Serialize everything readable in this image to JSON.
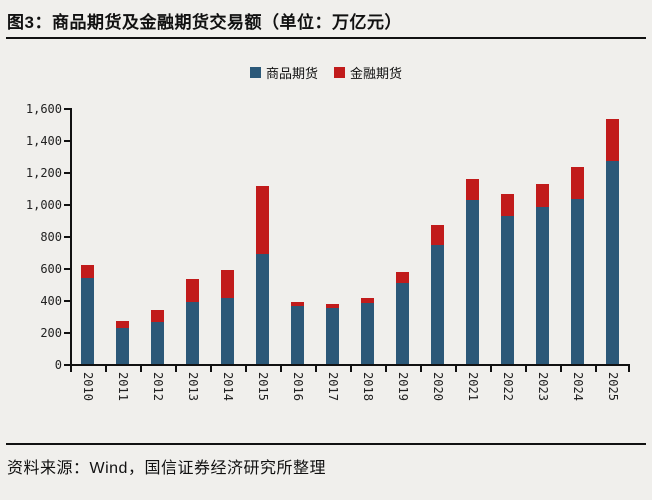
{
  "title": "图3：商品期货及金融期货交易额（单位：万亿元）",
  "source_note": "资料来源：Wind，国信证券经济研究所整理",
  "colors": {
    "commodity_blue": "#2B5878",
    "financial_red": "#C11B1B",
    "axis_black": "#111111",
    "background": "#F0EFEC"
  },
  "legend": {
    "items": [
      {
        "label": "商品期货",
        "color": "#2B5878"
      },
      {
        "label": "金融期货",
        "color": "#C11B1B"
      }
    ]
  },
  "chart_data": {
    "type": "bar",
    "stacked": true,
    "title": "商品期货及金融期货交易额",
    "unit": "万亿元",
    "categories": [
      "2010",
      "2011",
      "2012",
      "2013",
      "2014",
      "2015",
      "2016",
      "2017",
      "2018",
      "2019",
      "2020",
      "2021",
      "2022",
      "2023",
      "2024",
      "2025"
    ],
    "series": [
      {
        "name": "商品期货",
        "color": "#2B5878",
        "values": [
          535,
          225,
          260,
          390,
          410,
          685,
          360,
          350,
          380,
          505,
          745,
          1025,
          925,
          980,
          1030,
          1270
        ]
      },
      {
        "name": "金融期货",
        "color": "#C11B1B",
        "values": [
          85,
          45,
          80,
          140,
          175,
          430,
          30,
          25,
          35,
          70,
          125,
          130,
          140,
          145,
          200,
          260
        ]
      }
    ],
    "totals": [
      620,
      270,
      340,
      530,
      585,
      1115,
      390,
      375,
      415,
      575,
      870,
      1155,
      1065,
      1125,
      1230,
      1530
    ],
    "xlabel": "",
    "ylabel": "",
    "ylim": [
      0,
      1600
    ],
    "ytick_step": 200,
    "ytick_labels": [
      "0",
      "200",
      "400",
      "600",
      "800",
      "1,000",
      "1,200",
      "1,400",
      "1,600"
    ],
    "legend_position": "top-center",
    "grid": false,
    "x_label_rotation_deg": 90
  }
}
